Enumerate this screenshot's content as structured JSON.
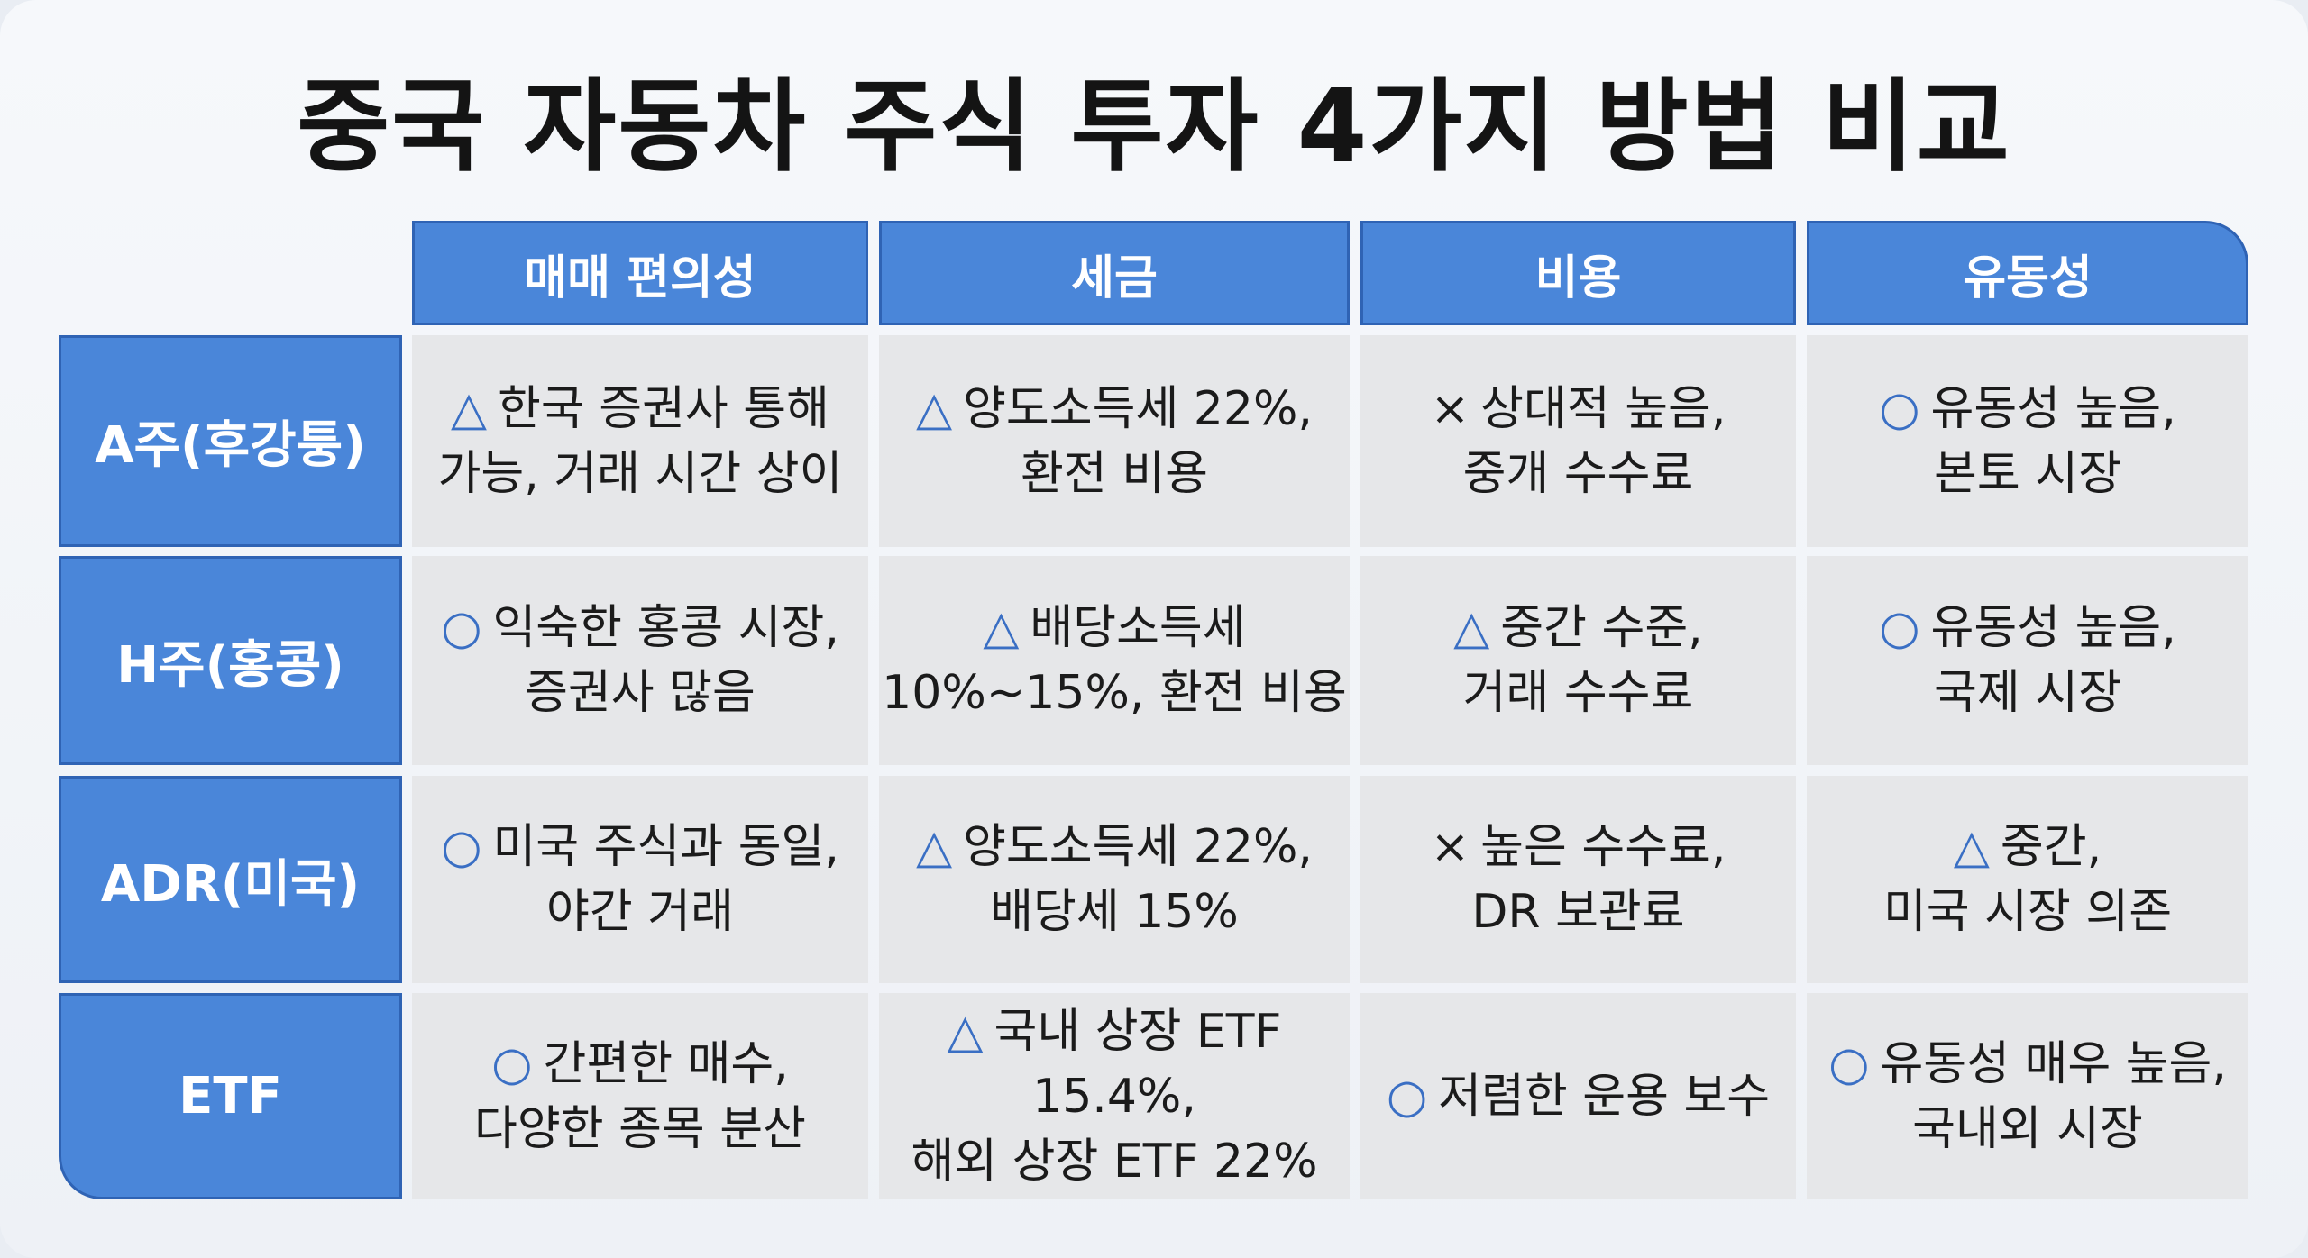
{
  "title": "중국 자동차 주식 투자 4가지 방법 비교",
  "table": {
    "columns": [
      "매매 편의성",
      "세금",
      "비용",
      "유동성"
    ],
    "rows": [
      {
        "label": "A주(후강퉁)",
        "cells": [
          {
            "mark": "△",
            "mark_color": "#3a6fc4",
            "lines": [
              "한국 증권사 통해",
              "가능, 거래 시간 상이"
            ]
          },
          {
            "mark": "△",
            "mark_color": "#3a6fc4",
            "lines": [
              "양도소득세 22%,",
              "환전 비용"
            ]
          },
          {
            "mark": "×",
            "mark_color": "#1b1b1b",
            "lines": [
              "상대적 높음,",
              "중개 수수료"
            ]
          },
          {
            "mark": "○",
            "mark_color": "#3a6fc4",
            "lines": [
              "유동성 높음,",
              "본토 시장"
            ]
          }
        ]
      },
      {
        "label": "H주(홍콩)",
        "cells": [
          {
            "mark": "○",
            "mark_color": "#3a6fc4",
            "lines": [
              "익숙한 홍콩 시장,",
              "증권사 많음"
            ]
          },
          {
            "mark": "△",
            "mark_color": "#3a6fc4",
            "lines": [
              "배당소득세",
              "10%~15%, 환전 비용"
            ]
          },
          {
            "mark": "△",
            "mark_color": "#3a6fc4",
            "lines": [
              "중간 수준,",
              "거래 수수료"
            ]
          },
          {
            "mark": "○",
            "mark_color": "#3a6fc4",
            "lines": [
              "유동성 높음,",
              "국제 시장"
            ]
          }
        ]
      },
      {
        "label": "ADR(미국)",
        "cells": [
          {
            "mark": "○",
            "mark_color": "#3a6fc4",
            "lines": [
              "미국 주식과 동일,",
              "야간 거래"
            ]
          },
          {
            "mark": "△",
            "mark_color": "#3a6fc4",
            "lines": [
              "양도소득세 22%,",
              "배당세 15%"
            ]
          },
          {
            "mark": "×",
            "mark_color": "#1b1b1b",
            "lines": [
              "높은 수수료,",
              "DR 보관료"
            ]
          },
          {
            "mark": "△",
            "mark_color": "#3a6fc4",
            "lines": [
              "중간,",
              "미국 시장 의존"
            ]
          }
        ]
      },
      {
        "label": "ETF",
        "cells": [
          {
            "mark": "○",
            "mark_color": "#3a6fc4",
            "lines": [
              "간편한 매수,",
              "다양한 종목 분산"
            ]
          },
          {
            "mark": "△",
            "mark_color": "#3a6fc4",
            "lines": [
              "국내 상장 ETF 15.4%,",
              "해외 상장 ETF 22%"
            ]
          },
          {
            "mark": "○",
            "mark_color": "#3a6fc4",
            "lines": [
              "저렴한 운용 보수"
            ]
          },
          {
            "mark": "○",
            "mark_color": "#3a6fc4",
            "lines": [
              "유동성 매우 높음,",
              "국내외 시장"
            ]
          }
        ]
      }
    ]
  }
}
